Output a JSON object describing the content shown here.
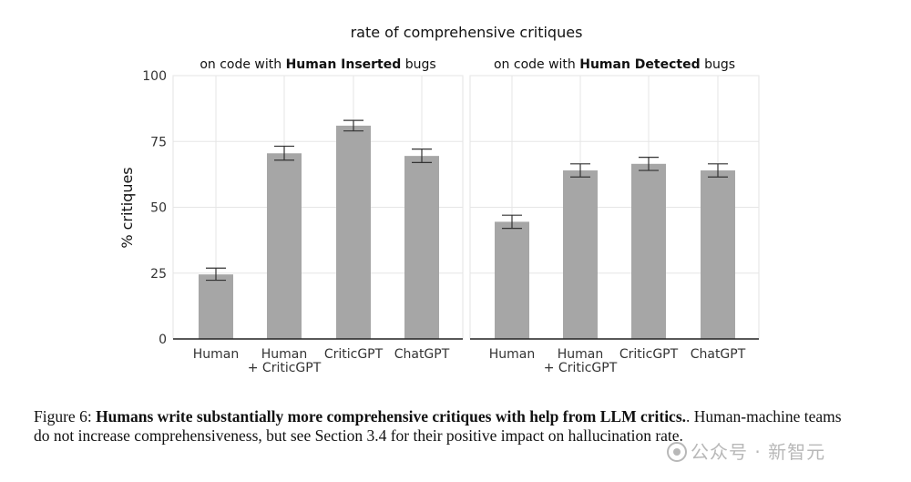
{
  "chart_data": {
    "type": "bar",
    "title": "rate of comprehensive critiques",
    "ylabel": "% critiques",
    "ylim": [
      0,
      100
    ],
    "yticks": [
      "0",
      "25",
      "50",
      "75",
      "100"
    ],
    "grid": true,
    "panels": [
      {
        "title_prefix": "on code with ",
        "title_bold": "Human Inserted",
        "title_suffix": " bugs",
        "categories": [
          {
            "line1": "Human",
            "line2": ""
          },
          {
            "line1": "Human",
            "line2": "+ CriticGPT"
          },
          {
            "line1": "CriticGPT",
            "line2": ""
          },
          {
            "line1": "ChatGPT",
            "line2": ""
          }
        ],
        "values": [
          24.5,
          70.5,
          81.0,
          69.5
        ],
        "err_low": [
          22.3,
          67.9,
          79.0,
          67.0
        ],
        "err_high": [
          26.9,
          73.2,
          83.0,
          72.1
        ]
      },
      {
        "title_prefix": "on code with ",
        "title_bold": "Human Detected",
        "title_suffix": " bugs",
        "categories": [
          {
            "line1": "Human",
            "line2": ""
          },
          {
            "line1": "Human",
            "line2": "+ CriticGPT"
          },
          {
            "line1": "CriticGPT",
            "line2": ""
          },
          {
            "line1": "ChatGPT",
            "line2": ""
          }
        ],
        "values": [
          44.5,
          64.0,
          66.5,
          64.0
        ],
        "err_low": [
          42.0,
          61.5,
          64.0,
          61.5
        ],
        "err_high": [
          47.0,
          66.5,
          69.0,
          66.5
        ]
      }
    ],
    "colors": {
      "bar": "#a6a6a6",
      "error": "#333333",
      "grid": "#e6e6e6",
      "axis": "#222222"
    }
  },
  "caption": {
    "prefix": "Figure 6: ",
    "bold": "Humans write substantially more comprehensive critiques with help from LLM critics.",
    "rest": ". Human-machine teams do not increase comprehensiveness, but see Section 3.4 for their positive impact on hallucination rate."
  },
  "watermark": "公众号 · 新智元"
}
